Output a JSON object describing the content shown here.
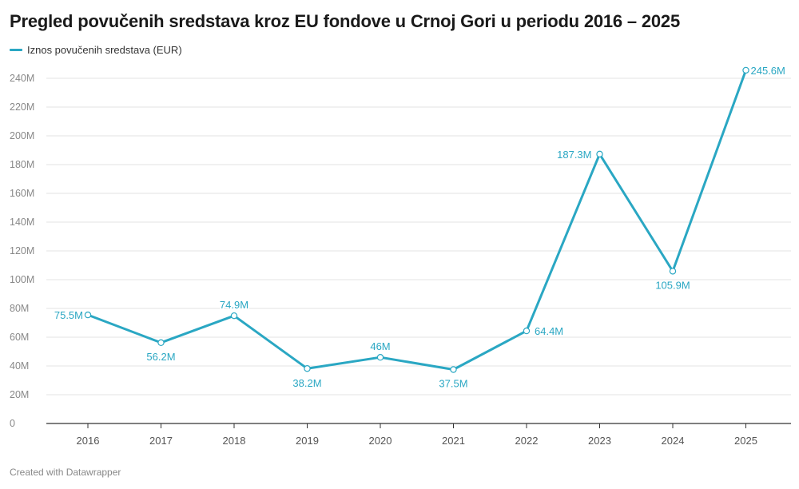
{
  "title": "Pregled povučenih sredstava kroz EU fondove u Crnoj Gori u periodu 2016 – 2025",
  "footer": "Created with Datawrapper",
  "chart_data": {
    "type": "line",
    "title": "Pregled povučenih sredstava kroz EU fondove u Crnoj Gori u periodu 2016 – 2025",
    "x": [
      "2016",
      "2017",
      "2018",
      "2019",
      "2020",
      "2021",
      "2022",
      "2023",
      "2024",
      "2025"
    ],
    "series": [
      {
        "name": "Iznos povučenih sredstava (EUR)",
        "color": "#2aa7c3",
        "values": [
          75.5,
          56.2,
          74.9,
          38.2,
          46,
          37.5,
          64.4,
          187.3,
          105.9,
          245.6
        ],
        "labels": [
          "75.5M",
          "56.2M",
          "74.9M",
          "38.2M",
          "46M",
          "37.5M",
          "64.4M",
          "187.3M",
          "105.9M",
          "245.6M"
        ]
      }
    ],
    "ylim": [
      0,
      240
    ],
    "yticks": [
      0,
      20,
      40,
      60,
      80,
      100,
      120,
      140,
      160,
      180,
      200,
      220,
      240
    ],
    "ytick_labels": [
      "0",
      "20M",
      "40M",
      "60M",
      "80M",
      "100M",
      "120M",
      "140M",
      "160M",
      "180M",
      "200M",
      "220M",
      "240M"
    ],
    "grid": true,
    "legend": "top-left"
  }
}
